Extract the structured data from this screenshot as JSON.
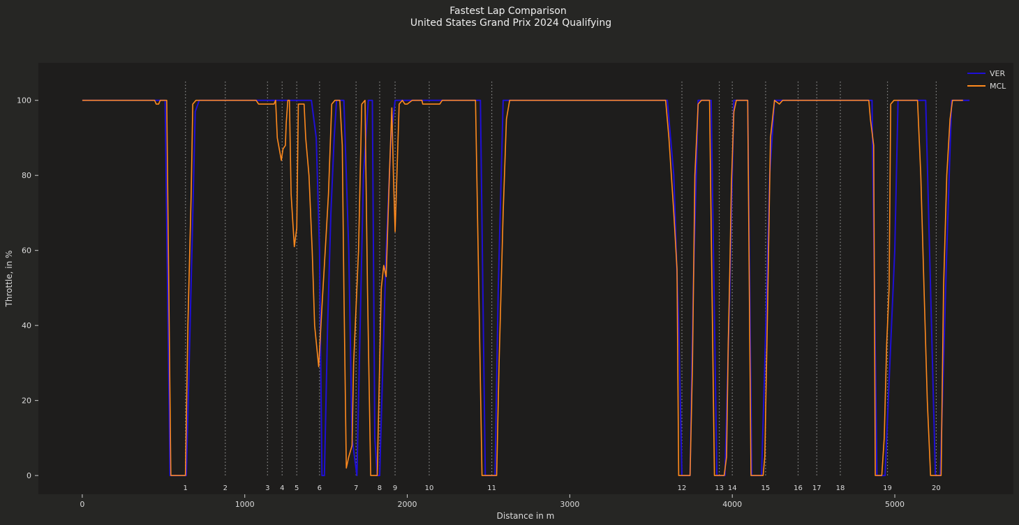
{
  "chart_data": {
    "type": "line",
    "title": "Fastest Lap Comparison",
    "subtitle": "United States Grand Prix 2024 Qualifying",
    "xlabel": "Distance in m",
    "ylabel": "Throttle, in %",
    "xlim": [
      -270,
      5730
    ],
    "ylim": [
      -5,
      110
    ],
    "xticks": [
      0,
      1000,
      2000,
      3000,
      4000,
      5000
    ],
    "yticks": [
      0,
      20,
      40,
      60,
      80,
      100
    ],
    "grid": false,
    "legend_position": "top-right",
    "corners": [
      {
        "label": "1",
        "x": 635
      },
      {
        "label": "2",
        "x": 880
      },
      {
        "label": "3",
        "x": 1140
      },
      {
        "label": "4",
        "x": 1230
      },
      {
        "label": "5",
        "x": 1320
      },
      {
        "label": "6",
        "x": 1460
      },
      {
        "label": "7",
        "x": 1685
      },
      {
        "label": "8",
        "x": 1830
      },
      {
        "label": "9",
        "x": 1925
      },
      {
        "label": "10",
        "x": 2135
      },
      {
        "label": "11",
        "x": 2520
      },
      {
        "label": "12",
        "x": 3690
      },
      {
        "label": "13",
        "x": 3920
      },
      {
        "label": "14",
        "x": 4000
      },
      {
        "label": "15",
        "x": 4205
      },
      {
        "label": "16",
        "x": 4405
      },
      {
        "label": "17",
        "x": 4520
      },
      {
        "label": "18",
        "x": 4665
      },
      {
        "label": "19",
        "x": 4955
      },
      {
        "label": "20",
        "x": 5255
      }
    ],
    "series": [
      {
        "name": "VER",
        "color": "#1f0fd6",
        "points": [
          [
            0,
            100
          ],
          [
            460,
            100
          ],
          [
            510,
            100
          ],
          [
            540,
            0
          ],
          [
            640,
            0
          ],
          [
            655,
            25
          ],
          [
            675,
            60
          ],
          [
            695,
            97
          ],
          [
            720,
            100
          ],
          [
            1150,
            100
          ],
          [
            1180,
            100
          ],
          [
            1310,
            100
          ],
          [
            1350,
            100
          ],
          [
            1410,
            100
          ],
          [
            1440,
            90
          ],
          [
            1460,
            60
          ],
          [
            1475,
            0
          ],
          [
            1490,
            0
          ],
          [
            1510,
            40
          ],
          [
            1530,
            70
          ],
          [
            1550,
            90
          ],
          [
            1565,
            100
          ],
          [
            1610,
            100
          ],
          [
            1640,
            60
          ],
          [
            1660,
            10
          ],
          [
            1690,
            0
          ],
          [
            1700,
            20
          ],
          [
            1730,
            80
          ],
          [
            1760,
            100
          ],
          [
            1785,
            100
          ],
          [
            1800,
            10
          ],
          [
            1815,
            0
          ],
          [
            1830,
            0
          ],
          [
            1850,
            30
          ],
          [
            1870,
            60
          ],
          [
            1900,
            90
          ],
          [
            1925,
            100
          ],
          [
            1960,
            100
          ],
          [
            1980,
            100
          ],
          [
            2010,
            100
          ],
          [
            2450,
            100
          ],
          [
            2480,
            0
          ],
          [
            2540,
            0
          ],
          [
            2560,
            50
          ],
          [
            2590,
            100
          ],
          [
            3600,
            100
          ],
          [
            3640,
            80
          ],
          [
            3670,
            40
          ],
          [
            3690,
            0
          ],
          [
            3740,
            0
          ],
          [
            3760,
            50
          ],
          [
            3790,
            100
          ],
          [
            3870,
            100
          ],
          [
            3905,
            0
          ],
          [
            3955,
            0
          ],
          [
            3985,
            50
          ],
          [
            4010,
            100
          ],
          [
            4080,
            100
          ],
          [
            4095,
            100
          ],
          [
            4120,
            0
          ],
          [
            4180,
            0
          ],
          [
            4200,
            30
          ],
          [
            4230,
            80
          ],
          [
            4260,
            100
          ],
          [
            4840,
            100
          ],
          [
            4860,
            100
          ],
          [
            4890,
            0
          ],
          [
            4940,
            0
          ],
          [
            4960,
            20
          ],
          [
            5000,
            60
          ],
          [
            5020,
            100
          ],
          [
            5100,
            100
          ],
          [
            5190,
            100
          ],
          [
            5250,
            0
          ],
          [
            5280,
            0
          ],
          [
            5320,
            60
          ],
          [
            5350,
            100
          ],
          [
            5460,
            100
          ]
        ]
      },
      {
        "name": "MCL",
        "color": "#ff8a1e",
        "points": [
          [
            0,
            100
          ],
          [
            445,
            100
          ],
          [
            455,
            99
          ],
          [
            470,
            99
          ],
          [
            480,
            100
          ],
          [
            520,
            100
          ],
          [
            545,
            0
          ],
          [
            635,
            0
          ],
          [
            650,
            40
          ],
          [
            670,
            75
          ],
          [
            680,
            99
          ],
          [
            700,
            100
          ],
          [
            1070,
            100
          ],
          [
            1085,
            99
          ],
          [
            1180,
            99
          ],
          [
            1190,
            100
          ],
          [
            1200,
            90
          ],
          [
            1225,
            84
          ],
          [
            1235,
            87
          ],
          [
            1250,
            88
          ],
          [
            1255,
            94
          ],
          [
            1265,
            100
          ],
          [
            1275,
            100
          ],
          [
            1285,
            75
          ],
          [
            1305,
            61
          ],
          [
            1320,
            66
          ],
          [
            1330,
            99
          ],
          [
            1365,
            99
          ],
          [
            1375,
            90
          ],
          [
            1395,
            80
          ],
          [
            1415,
            60
          ],
          [
            1430,
            40
          ],
          [
            1455,
            29
          ],
          [
            1475,
            45
          ],
          [
            1495,
            60
          ],
          [
            1515,
            75
          ],
          [
            1535,
            99
          ],
          [
            1555,
            100
          ],
          [
            1585,
            100
          ],
          [
            1600,
            88
          ],
          [
            1610,
            50
          ],
          [
            1625,
            2
          ],
          [
            1640,
            5
          ],
          [
            1660,
            8
          ],
          [
            1670,
            30
          ],
          [
            1700,
            60
          ],
          [
            1720,
            99
          ],
          [
            1740,
            100
          ],
          [
            1755,
            50
          ],
          [
            1775,
            0
          ],
          [
            1815,
            0
          ],
          [
            1825,
            20
          ],
          [
            1840,
            50
          ],
          [
            1855,
            56
          ],
          [
            1870,
            53
          ],
          [
            1890,
            80
          ],
          [
            1905,
            98
          ],
          [
            1915,
            80
          ],
          [
            1925,
            65
          ],
          [
            1950,
            99
          ],
          [
            1970,
            100
          ],
          [
            1985,
            99
          ],
          [
            2000,
            99
          ],
          [
            2030,
            100
          ],
          [
            2090,
            100
          ],
          [
            2095,
            99
          ],
          [
            2200,
            99
          ],
          [
            2215,
            100
          ],
          [
            2420,
            100
          ],
          [
            2440,
            50
          ],
          [
            2460,
            0
          ],
          [
            2550,
            0
          ],
          [
            2565,
            30
          ],
          [
            2590,
            70
          ],
          [
            2610,
            95
          ],
          [
            2630,
            100
          ],
          [
            3590,
            100
          ],
          [
            3610,
            90
          ],
          [
            3640,
            70
          ],
          [
            3660,
            55
          ],
          [
            3670,
            0
          ],
          [
            3740,
            0
          ],
          [
            3755,
            30
          ],
          [
            3770,
            80
          ],
          [
            3790,
            99
          ],
          [
            3810,
            100
          ],
          [
            3860,
            100
          ],
          [
            3875,
            50
          ],
          [
            3890,
            0
          ],
          [
            3950,
            0
          ],
          [
            3965,
            5
          ],
          [
            3975,
            35
          ],
          [
            3985,
            55
          ],
          [
            3995,
            78
          ],
          [
            4010,
            97
          ],
          [
            4025,
            100
          ],
          [
            4095,
            100
          ],
          [
            4105,
            50
          ],
          [
            4115,
            0
          ],
          [
            4190,
            0
          ],
          [
            4200,
            5
          ],
          [
            4215,
            40
          ],
          [
            4235,
            90
          ],
          [
            4260,
            100
          ],
          [
            4290,
            99
          ],
          [
            4310,
            100
          ],
          [
            4840,
            100
          ],
          [
            4850,
            95
          ],
          [
            4870,
            88
          ],
          [
            4880,
            0
          ],
          [
            4920,
            0
          ],
          [
            4935,
            10
          ],
          [
            4950,
            35
          ],
          [
            4965,
            50
          ],
          [
            4975,
            99
          ],
          [
            4995,
            100
          ],
          [
            5140,
            100
          ],
          [
            5160,
            80
          ],
          [
            5180,
            50
          ],
          [
            5200,
            20
          ],
          [
            5220,
            0
          ],
          [
            5285,
            0
          ],
          [
            5300,
            50
          ],
          [
            5320,
            80
          ],
          [
            5340,
            95
          ],
          [
            5355,
            100
          ],
          [
            5420,
            100
          ]
        ]
      }
    ]
  }
}
